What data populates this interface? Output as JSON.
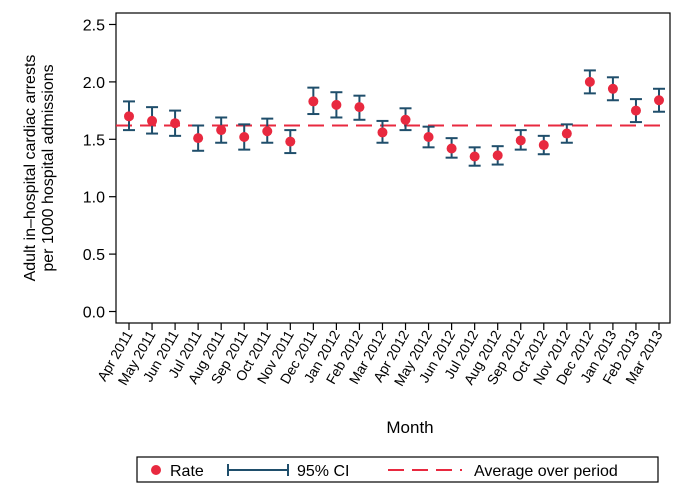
{
  "chart_data": {
    "type": "scatter",
    "xlabel": "Month",
    "ylabel": [
      "Adult in–hospital cardiac arrests",
      "per 1000 hospital admissions"
    ],
    "ylim": [
      -0.1,
      2.6
    ],
    "yticks": [
      "0.0",
      "0.5",
      "1.0",
      "1.5",
      "2.0",
      "2.5"
    ],
    "grid": false,
    "legend_position": "bottom",
    "categories": [
      "Apr 2011",
      "May 2011",
      "Jun 2011",
      "Jul 2011",
      "Aug 2011",
      "Sep 2011",
      "Oct 2011",
      "Nov 2011",
      "Dec 2011",
      "Jan 2012",
      "Feb 2012",
      "Mar 2012",
      "Apr 2012",
      "May 2012",
      "Jun 2012",
      "Jul 2012",
      "Aug 2012",
      "Sep 2012",
      "Oct 2012",
      "Nov 2012",
      "Dec 2012",
      "Jan 2013",
      "Feb 2013",
      "Mar 2013"
    ],
    "rate": [
      1.7,
      1.66,
      1.64,
      1.51,
      1.58,
      1.52,
      1.57,
      1.48,
      1.83,
      1.8,
      1.78,
      1.56,
      1.67,
      1.52,
      1.42,
      1.35,
      1.36,
      1.49,
      1.45,
      1.55,
      2.0,
      1.94,
      1.75,
      1.84
    ],
    "ci_lower": [
      1.58,
      1.55,
      1.53,
      1.4,
      1.47,
      1.41,
      1.47,
      1.38,
      1.72,
      1.69,
      1.67,
      1.47,
      1.58,
      1.43,
      1.34,
      1.27,
      1.28,
      1.41,
      1.37,
      1.47,
      1.9,
      1.84,
      1.65,
      1.74
    ],
    "ci_upper": [
      1.83,
      1.78,
      1.75,
      1.62,
      1.69,
      1.63,
      1.68,
      1.58,
      1.95,
      1.91,
      1.88,
      1.66,
      1.77,
      1.61,
      1.51,
      1.43,
      1.44,
      1.58,
      1.53,
      1.63,
      2.1,
      2.04,
      1.85,
      1.94
    ],
    "average": 1.62,
    "series": [
      {
        "name": "Rate"
      },
      {
        "name": "95% CI"
      },
      {
        "name": "Average over period"
      }
    ],
    "colors": {
      "rate": "#e8293f",
      "ci": "#1f4e6b",
      "average": "#e8293f"
    }
  }
}
